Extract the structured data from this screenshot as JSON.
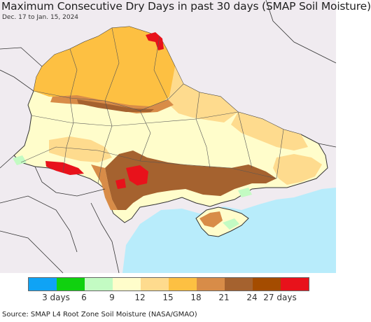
{
  "map": {
    "title": "Maximum Consecutive Dry Days in past 30 days (SMAP Soil Moisture)",
    "subtitle": "Dec. 17 to Jan. 15, 2024",
    "source": "Source: SMAP L4 Root Zone Soil Moisture (NASA/GMAO)",
    "colors": {
      "background_land": "#f0ebf0",
      "sea": "#b8ecfb",
      "border": "#333333"
    }
  },
  "legend": {
    "colors": [
      "#0fa3f5",
      "#10d10f",
      "#c3fbc3",
      "#fffdcb",
      "#fedb8e",
      "#fdc042",
      "#d88c48",
      "#a5622f",
      "#a44c00",
      "#e8121b"
    ],
    "labels": [
      "3 days",
      "6",
      "9",
      "12",
      "15",
      "18",
      "21",
      "24",
      "27 days"
    ]
  }
}
